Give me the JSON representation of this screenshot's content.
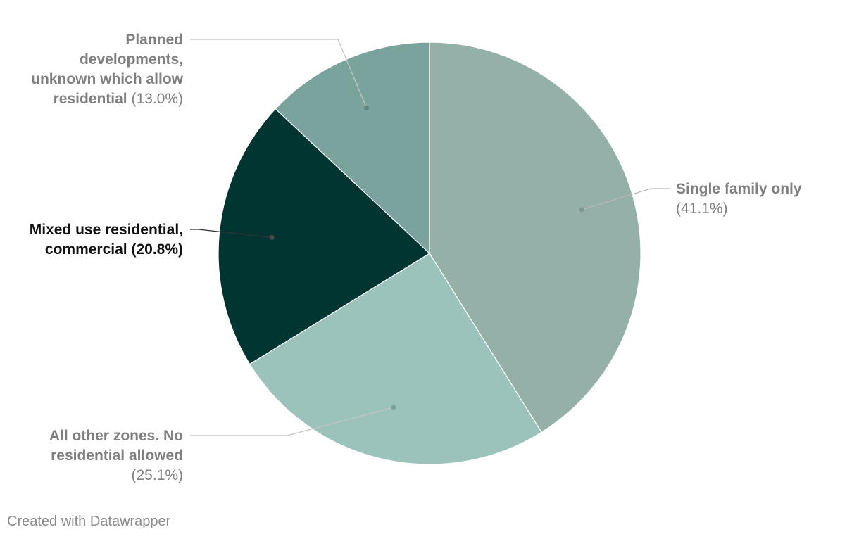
{
  "chart_data": {
    "type": "pie",
    "slices": [
      {
        "label": "Single family only",
        "pct_text": "(41.1%)",
        "value": 41.1,
        "color": "#95b0a9"
      },
      {
        "label": "All other zones. No residential allowed",
        "pct_text": "(25.1%)",
        "value": 25.1,
        "color": "#9bc3bc"
      },
      {
        "label": "Mixed use residential, commercial",
        "pct_text": "(20.8%)",
        "value": 20.8,
        "color": "#013532"
      },
      {
        "label": "Planned developments, unknown which allow residential",
        "pct_text": "(13.0%)",
        "value": 13.0,
        "color": "#7ba39e"
      }
    ]
  },
  "labels": {
    "planned": {
      "lines": [
        "Planned",
        "developments,",
        "unknown which allow"
      ],
      "last_name": "residential",
      "pct": "(13.0%)"
    },
    "mixed": {
      "lines": [
        "Mixed use residential,"
      ],
      "last_name": "commercial",
      "pct": "(20.8%)"
    },
    "other": {
      "lines": [
        "All other zones. No",
        "residential allowed"
      ],
      "pct": "(25.1%)"
    },
    "single": {
      "name": "Single family only",
      "pct": "(41.1%)"
    }
  },
  "credit": "Created with Datawrapper"
}
